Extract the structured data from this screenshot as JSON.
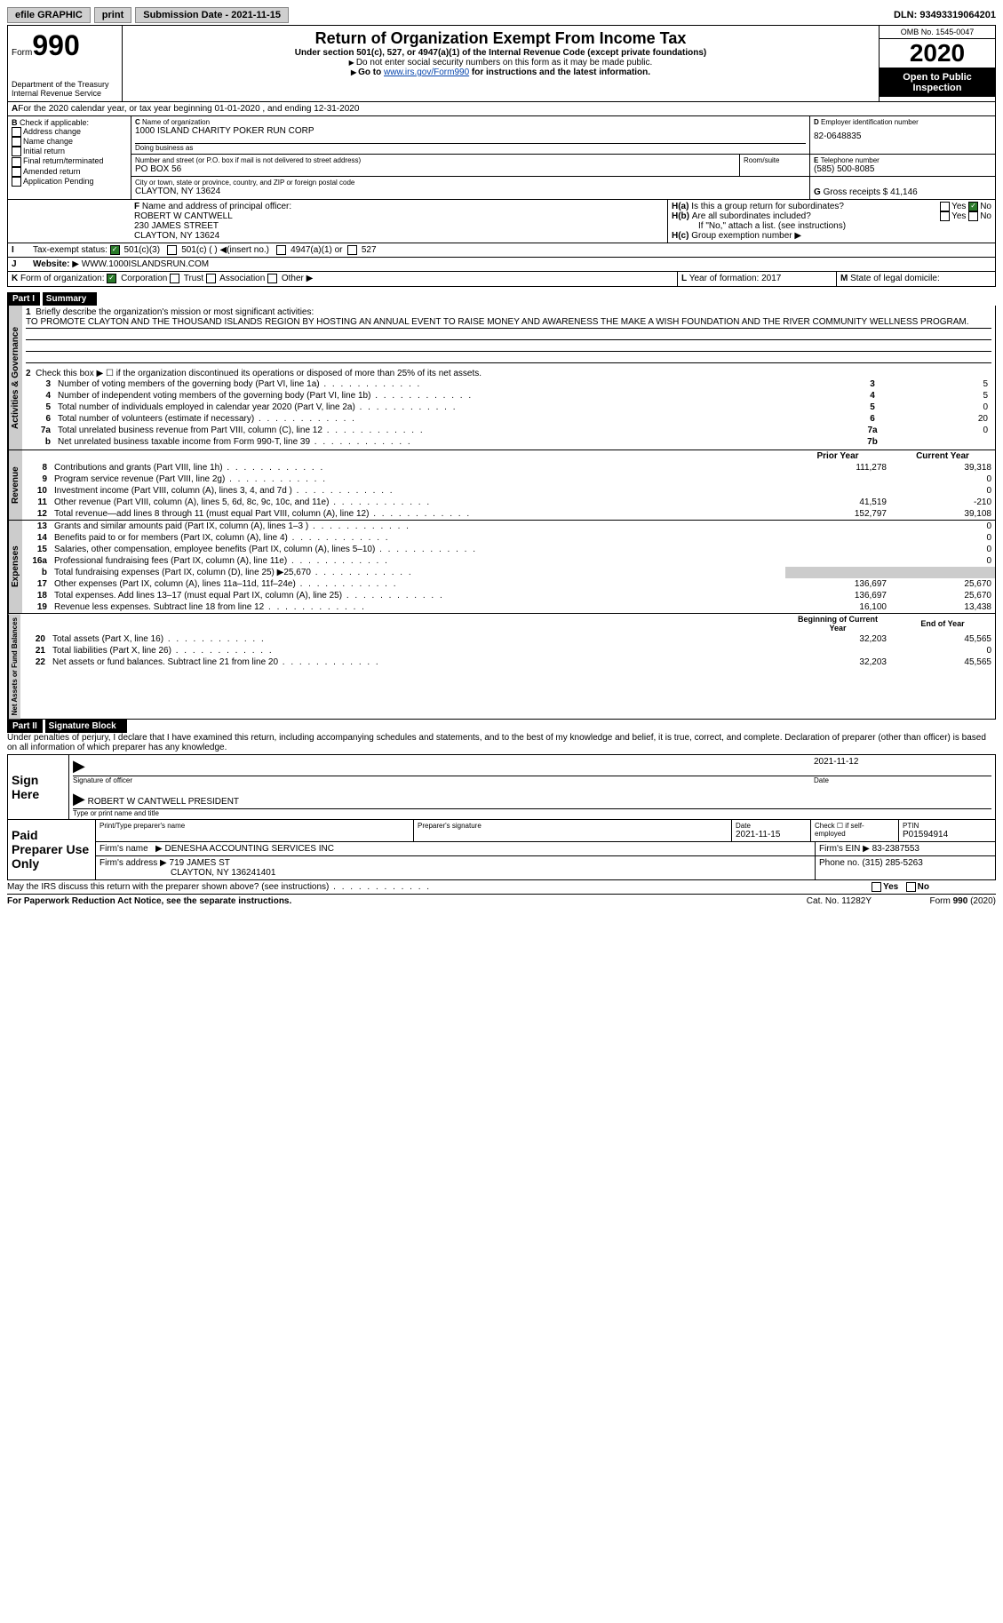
{
  "topbar": {
    "efile": "efile GRAPHIC",
    "print": "print",
    "submission_label": "Submission Date - ",
    "submission_date": "2021-11-15",
    "dln_label": "DLN: ",
    "dln": "93493319064201"
  },
  "header": {
    "form_word": "Form",
    "form_number": "990",
    "dept": "Department of the Treasury",
    "irs": "Internal Revenue Service",
    "title": "Return of Organization Exempt From Income Tax",
    "subtitle": "Under section 501(c), 527, or 4947(a)(1) of the Internal Revenue Code (except private foundations)",
    "note1": "Do not enter social security numbers on this form as it may be made public.",
    "note2_prefix": "Go to ",
    "note2_link": "www.irs.gov/Form990",
    "note2_suffix": " for instructions and the latest information.",
    "omb": "OMB No. 1545-0047",
    "year": "2020",
    "open_public": "Open to Public Inspection"
  },
  "line_a": "For the 2020 calendar year, or tax year beginning 01-01-2020   , and ending 12-31-2020",
  "section_b": {
    "label": "Check if applicable:",
    "items": [
      "Address change",
      "Name change",
      "Initial return",
      "Final return/terminated",
      "Amended return",
      "Application Pending"
    ]
  },
  "section_c": {
    "name_label": "Name of organization",
    "name": "1000 ISLAND CHARITY POKER RUN CORP",
    "dba_label": "Doing business as",
    "dba": "",
    "street_label": "Number and street (or P.O. box if mail is not delivered to street address)",
    "street": "PO BOX 56",
    "room_label": "Room/suite",
    "city_label": "City or town, state or province, country, and ZIP or foreign postal code",
    "city": "CLAYTON, NY  13624"
  },
  "section_d": {
    "label": "Employer identification number",
    "value": "82-0648835"
  },
  "section_e": {
    "label": "Telephone number",
    "value": "(585) 500-8085"
  },
  "section_g": {
    "label": "Gross receipts $",
    "value": "41,146"
  },
  "section_f": {
    "label": "Name and address of principal officer:",
    "name": "ROBERT W CANTWELL",
    "street": "230 JAMES STREET",
    "city": "CLAYTON, NY  13624"
  },
  "section_h": {
    "ha": "Is this a group return for subordinates?",
    "hb": "Are all subordinates included?",
    "hb_note": "If \"No,\" attach a list. (see instructions)",
    "hc": "Group exemption number"
  },
  "line_i": {
    "label": "Tax-exempt status:",
    "opts": [
      "501(c)(3)",
      "501(c) (  )",
      "(insert no.)",
      "4947(a)(1) or",
      "527"
    ]
  },
  "line_j": {
    "label": "Website:",
    "value": "WWW.1000ISLANDSRUN.COM"
  },
  "line_k": {
    "label": "Form of organization:",
    "opts": [
      "Corporation",
      "Trust",
      "Association",
      "Other"
    ]
  },
  "line_l": {
    "label": "Year of formation:",
    "value": "2017"
  },
  "line_m": {
    "label": "State of legal domicile:",
    "value": ""
  },
  "parts": {
    "part1": "Part I",
    "summary": "Summary",
    "part2": "Part II",
    "sig": "Signature Block"
  },
  "vert": {
    "gov": "Activities & Governance",
    "rev": "Revenue",
    "exp": "Expenses",
    "net": "Net Assets or Fund Balances"
  },
  "summary": {
    "q1": "Briefly describe the organization's mission or most significant activities:",
    "mission": "TO PROMOTE CLAYTON AND THE THOUSAND ISLANDS REGION BY HOSTING AN ANNUAL EVENT TO RAISE MONEY AND AWARENESS THE MAKE A WISH FOUNDATION AND THE RIVER COMMUNITY WELLNESS PROGRAM.",
    "q2": "Check this box ▶ ☐  if the organization discontinued its operations or disposed of more than 25% of its net assets.",
    "rows_gov": [
      {
        "n": "3",
        "t": "Number of voting members of the governing body (Part VI, line 1a)",
        "box": "3",
        "v": "5"
      },
      {
        "n": "4",
        "t": "Number of independent voting members of the governing body (Part VI, line 1b)",
        "box": "4",
        "v": "5"
      },
      {
        "n": "5",
        "t": "Total number of individuals employed in calendar year 2020 (Part V, line 2a)",
        "box": "5",
        "v": "0"
      },
      {
        "n": "6",
        "t": "Total number of volunteers (estimate if necessary)",
        "box": "6",
        "v": "20"
      },
      {
        "n": "7a",
        "t": "Total unrelated business revenue from Part VIII, column (C), line 12",
        "box": "7a",
        "v": "0"
      },
      {
        "n": "b",
        "t": "Net unrelated business taxable income from Form 990-T, line 39",
        "box": "7b",
        "v": ""
      }
    ],
    "col_headers": {
      "prior": "Prior Year",
      "current": "Current Year"
    },
    "rows_rev": [
      {
        "n": "8",
        "t": "Contributions and grants (Part VIII, line 1h)",
        "p": "111,278",
        "c": "39,318"
      },
      {
        "n": "9",
        "t": "Program service revenue (Part VIII, line 2g)",
        "p": "",
        "c": "0"
      },
      {
        "n": "10",
        "t": "Investment income (Part VIII, column (A), lines 3, 4, and 7d )",
        "p": "",
        "c": "0"
      },
      {
        "n": "11",
        "t": "Other revenue (Part VIII, column (A), lines 5, 6d, 8c, 9c, 10c, and 11e)",
        "p": "41,519",
        "c": "-210"
      },
      {
        "n": "12",
        "t": "Total revenue—add lines 8 through 11 (must equal Part VIII, column (A), line 12)",
        "p": "152,797",
        "c": "39,108"
      }
    ],
    "rows_exp": [
      {
        "n": "13",
        "t": "Grants and similar amounts paid (Part IX, column (A), lines 1–3 )",
        "p": "",
        "c": "0"
      },
      {
        "n": "14",
        "t": "Benefits paid to or for members (Part IX, column (A), line 4)",
        "p": "",
        "c": "0"
      },
      {
        "n": "15",
        "t": "Salaries, other compensation, employee benefits (Part IX, column (A), lines 5–10)",
        "p": "",
        "c": "0"
      },
      {
        "n": "16a",
        "t": "Professional fundraising fees (Part IX, column (A), line 11e)",
        "p": "",
        "c": "0"
      },
      {
        "n": "b",
        "t": "Total fundraising expenses (Part IX, column (D), line 25) ▶25,670",
        "p": "SHADE",
        "c": "SHADE"
      },
      {
        "n": "17",
        "t": "Other expenses (Part IX, column (A), lines 11a–11d, 11f–24e)",
        "p": "136,697",
        "c": "25,670"
      },
      {
        "n": "18",
        "t": "Total expenses. Add lines 13–17 (must equal Part IX, column (A), line 25)",
        "p": "136,697",
        "c": "25,670"
      },
      {
        "n": "19",
        "t": "Revenue less expenses. Subtract line 18 from line 12",
        "p": "16,100",
        "c": "13,438"
      }
    ],
    "col_headers2": {
      "begin": "Beginning of Current Year",
      "end": "End of Year"
    },
    "rows_net": [
      {
        "n": "20",
        "t": "Total assets (Part X, line 16)",
        "p": "32,203",
        "c": "45,565"
      },
      {
        "n": "21",
        "t": "Total liabilities (Part X, line 26)",
        "p": "",
        "c": "0"
      },
      {
        "n": "22",
        "t": "Net assets or fund balances. Subtract line 21 from line 20",
        "p": "32,203",
        "c": "45,565"
      }
    ]
  },
  "sig": {
    "declaration": "Under penalties of perjury, I declare that I have examined this return, including accompanying schedules and statements, and to the best of my knowledge and belief, it is true, correct, and complete. Declaration of preparer (other than officer) is based on all information of which preparer has any knowledge.",
    "sign_here": "Sign Here",
    "sig_officer": "Signature of officer",
    "date": "Date",
    "sig_date": "2021-11-12",
    "name_title": "ROBERT W CANTWELL  PRESIDENT",
    "type_name": "Type or print name and title",
    "paid": "Paid Preparer Use Only",
    "prep_name_label": "Print/Type preparer's name",
    "prep_name": "",
    "prep_sig_label": "Preparer's signature",
    "prep_date_label": "Date",
    "prep_date": "2021-11-15",
    "check_if": "Check ☐ if self-employed",
    "ptin_label": "PTIN",
    "ptin": "P01594914",
    "firm_name_label": "Firm's name",
    "firm_name": "DENESHA ACCOUNTING SERVICES INC",
    "firm_ein_label": "Firm's EIN",
    "firm_ein": "83-2387553",
    "firm_addr_label": "Firm's address",
    "firm_addr1": "719 JAMES ST",
    "firm_addr2": "CLAYTON, NY  136241401",
    "phone_label": "Phone no.",
    "phone": "(315) 285-5263",
    "may_irs": "May the IRS discuss this return with the preparer shown above? (see instructions)"
  },
  "footer": {
    "paperwork": "For Paperwork Reduction Act Notice, see the separate instructions.",
    "catno": "Cat. No. 11282Y",
    "formno": "Form 990 (2020)"
  }
}
